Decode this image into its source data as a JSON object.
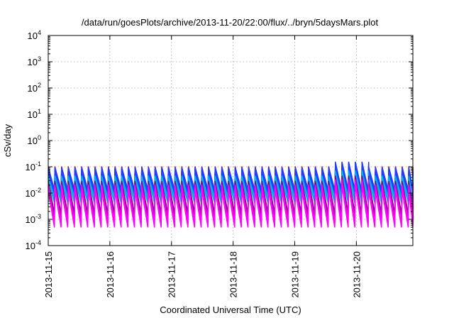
{
  "chart_data": {
    "type": "line",
    "title": "/data/run/goesPlots/archive/2013-11-20/22:00/flux/../bryn/5daysMars.plot",
    "xlabel": "Coordinated Universal Time (UTC)",
    "ylabel": "cSv/day",
    "yscale": "log",
    "ylim": [
      0.0001,
      10000
    ],
    "y_ticks": [
      {
        "base": "10",
        "exp": "-4"
      },
      {
        "base": "10",
        "exp": "-3"
      },
      {
        "base": "10",
        "exp": "-2"
      },
      {
        "base": "10",
        "exp": "-1"
      },
      {
        "base": "10",
        "exp": "0"
      },
      {
        "base": "10",
        "exp": "1"
      },
      {
        "base": "10",
        "exp": "2"
      },
      {
        "base": "10",
        "exp": "3"
      },
      {
        "base": "10",
        "exp": "4"
      }
    ],
    "xlim": [
      "2013-11-15T00:00",
      "2013-11-20T22:00"
    ],
    "x_ticks": [
      "2013-11-15",
      "2013-11-16",
      "2013-11-17",
      "2013-11-18",
      "2013-11-19",
      "2013-11-20"
    ],
    "grid": true,
    "legend": "none",
    "pattern": {
      "period_hours": 2.6,
      "enhanced_from": "2013-11-19T14:00",
      "enhanced_peak": 0.15
    },
    "series": [
      {
        "color": "#ff0000",
        "peak": 0.09,
        "trough": 0.009
      },
      {
        "color": "#1f3fff",
        "peak": 0.085,
        "trough": 0.012
      },
      {
        "color": "#00b3e6",
        "peak": 0.04,
        "trough": 0.006
      },
      {
        "color": "#8b008b",
        "peak": 0.025,
        "trough": 0.0015
      },
      {
        "color": "#ff00ff",
        "peak": 0.018,
        "trough": 0.0007
      }
    ]
  }
}
